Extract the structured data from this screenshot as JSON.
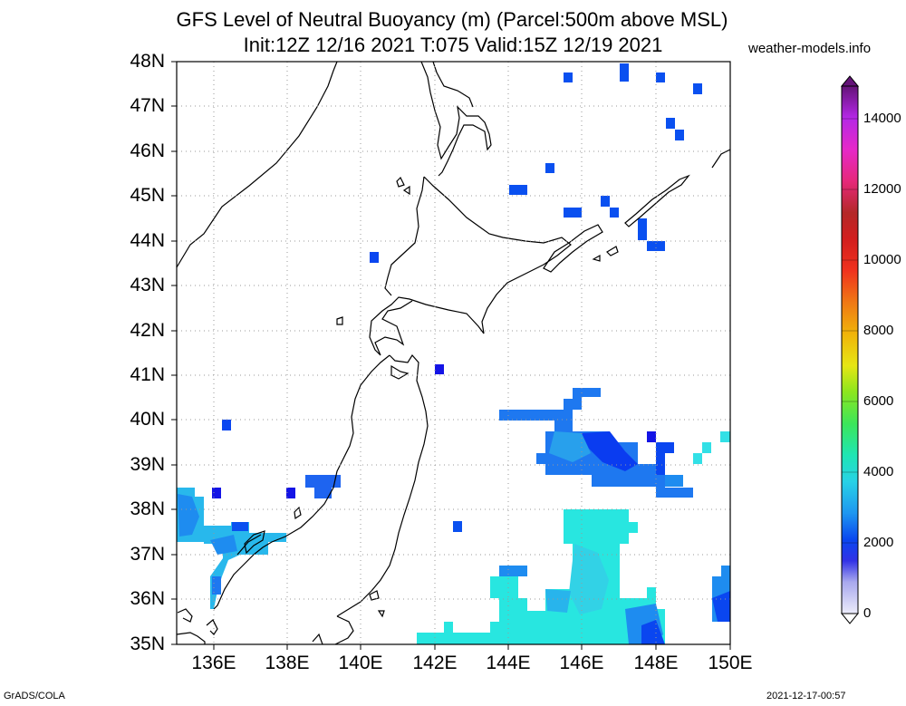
{
  "header": {
    "title_line1": "GFS Level of Neutral Buoyancy (m) (Parcel:500m above MSL)",
    "title_line2": "Init:12Z 12/16 2021 T:075 Valid:15Z 12/19 2021",
    "site": "weather-models.info"
  },
  "footer": {
    "left": "GrADS/COLA",
    "right": "2021-12-17-00:57"
  },
  "map": {
    "lat_labels": [
      "48N",
      "47N",
      "46N",
      "45N",
      "44N",
      "43N",
      "42N",
      "41N",
      "40N",
      "39N",
      "38N",
      "37N",
      "36N",
      "35N"
    ],
    "lon_labels": [
      "136E",
      "138E",
      "140E",
      "142E",
      "144E",
      "146E",
      "148E",
      "150E"
    ],
    "lat_range": [
      35,
      48
    ],
    "lon_range": [
      135,
      150
    ],
    "grid": "dotted",
    "field_units": "m"
  },
  "colorbar": {
    "labels": [
      "14000",
      "12000",
      "10000",
      "8000",
      "6000",
      "4000",
      "2000",
      "0"
    ],
    "colors": [
      "#d9d9f2",
      "#bdbdf0",
      "#9d9dee",
      "#7b7bea",
      "#5050e6",
      "#1e1ee6",
      "#0a37f0",
      "#0a5ff0",
      "#1e87f0",
      "#28aaf0",
      "#32c8e6",
      "#28e6d2",
      "#1ee6b4",
      "#28e696",
      "#3ce650",
      "#64e628",
      "#a0e61e",
      "#d2e614",
      "#f0dc14",
      "#f0b40a",
      "#f08c0a",
      "#f0641e",
      "#f03c1e",
      "#e61e1e",
      "#c8281e",
      "#aa2828",
      "#c8286e",
      "#e6289c",
      "#e628c8",
      "#d228e6",
      "#aa28dc",
      "#8c1ecd",
      "#64147d"
    ],
    "accent_low": "#1e1ee6",
    "accent_mid": "#28e6d2"
  }
}
